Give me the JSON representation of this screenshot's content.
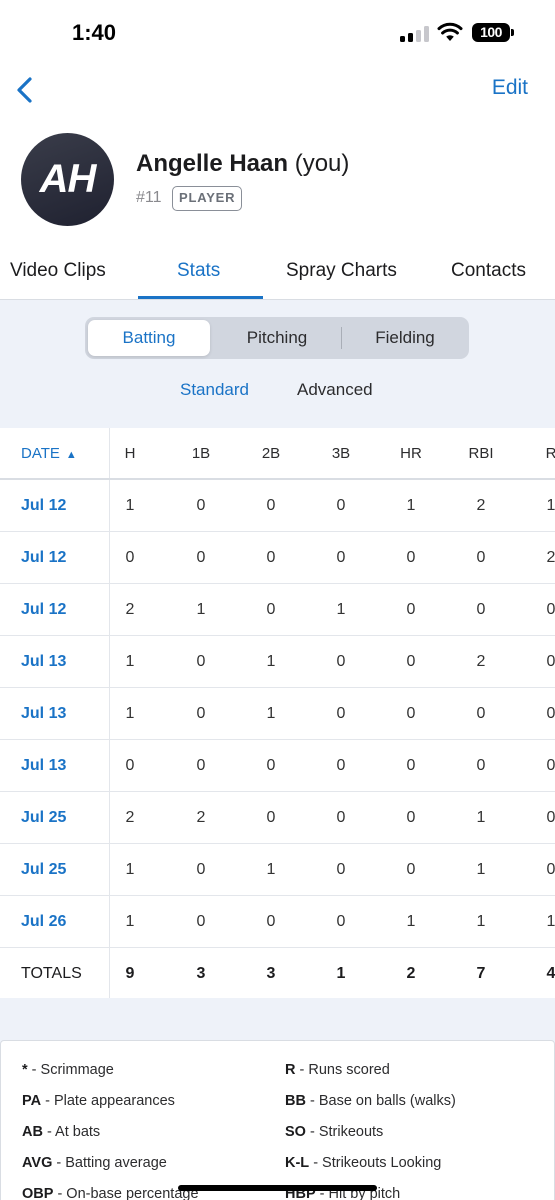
{
  "status_bar": {
    "time": "1:40",
    "battery": "100"
  },
  "nav": {
    "edit_label": "Edit"
  },
  "profile": {
    "initials": "AH",
    "name": "Angelle Haan",
    "you_suffix": "(you)",
    "number": "#11",
    "role": "PLAYER"
  },
  "tabs": [
    "Video Clips",
    "Stats",
    "Spray Charts",
    "Contacts"
  ],
  "active_tab": "Stats",
  "segments": [
    "Batting",
    "Pitching",
    "Fielding"
  ],
  "active_segment": "Batting",
  "subtabs": [
    "Standard",
    "Advanced"
  ],
  "active_subtab": "Standard",
  "table": {
    "date_header": "DATE",
    "sort_indicator": "▲",
    "columns": [
      "H",
      "1B",
      "2B",
      "3B",
      "HR",
      "RBI",
      "R"
    ],
    "rows": [
      {
        "date": "Jul 12",
        "values": [
          "1",
          "0",
          "0",
          "0",
          "1",
          "2",
          "1"
        ]
      },
      {
        "date": "Jul 12",
        "values": [
          "0",
          "0",
          "0",
          "0",
          "0",
          "0",
          "2"
        ]
      },
      {
        "date": "Jul 12",
        "values": [
          "2",
          "1",
          "0",
          "1",
          "0",
          "0",
          "0"
        ]
      },
      {
        "date": "Jul 13",
        "values": [
          "1",
          "0",
          "1",
          "0",
          "0",
          "2",
          "0"
        ]
      },
      {
        "date": "Jul 13",
        "values": [
          "1",
          "0",
          "1",
          "0",
          "0",
          "0",
          "0"
        ]
      },
      {
        "date": "Jul 13",
        "values": [
          "0",
          "0",
          "0",
          "0",
          "0",
          "0",
          "0"
        ]
      },
      {
        "date": "Jul 25",
        "values": [
          "2",
          "2",
          "0",
          "0",
          "0",
          "1",
          "0"
        ]
      },
      {
        "date": "Jul 25",
        "values": [
          "1",
          "0",
          "1",
          "0",
          "0",
          "1",
          "0"
        ]
      },
      {
        "date": "Jul 26",
        "values": [
          "1",
          "0",
          "0",
          "0",
          "1",
          "1",
          "1"
        ]
      }
    ],
    "totals_label": "TOTALS",
    "totals": [
      "9",
      "3",
      "3",
      "1",
      "2",
      "7",
      "4"
    ]
  },
  "legend": [
    {
      "abbr": "*",
      "desc": " - Scrimmage"
    },
    {
      "abbr": "R",
      "desc": " - Runs scored"
    },
    {
      "abbr": "PA",
      "desc": " - Plate appearances"
    },
    {
      "abbr": "BB",
      "desc": " - Base on balls (walks)"
    },
    {
      "abbr": "AB",
      "desc": " - At bats"
    },
    {
      "abbr": "SO",
      "desc": " - Strikeouts"
    },
    {
      "abbr": "AVG",
      "desc": " - Batting average"
    },
    {
      "abbr": "K-L",
      "desc": " - Strikeouts Looking"
    },
    {
      "abbr": "OBP",
      "desc": " - On-base percentage"
    },
    {
      "abbr": "HBP",
      "desc": " - Hit by pitch"
    }
  ],
  "colors": {
    "accent": "#1a73c6",
    "panel": "#eef2f9"
  }
}
